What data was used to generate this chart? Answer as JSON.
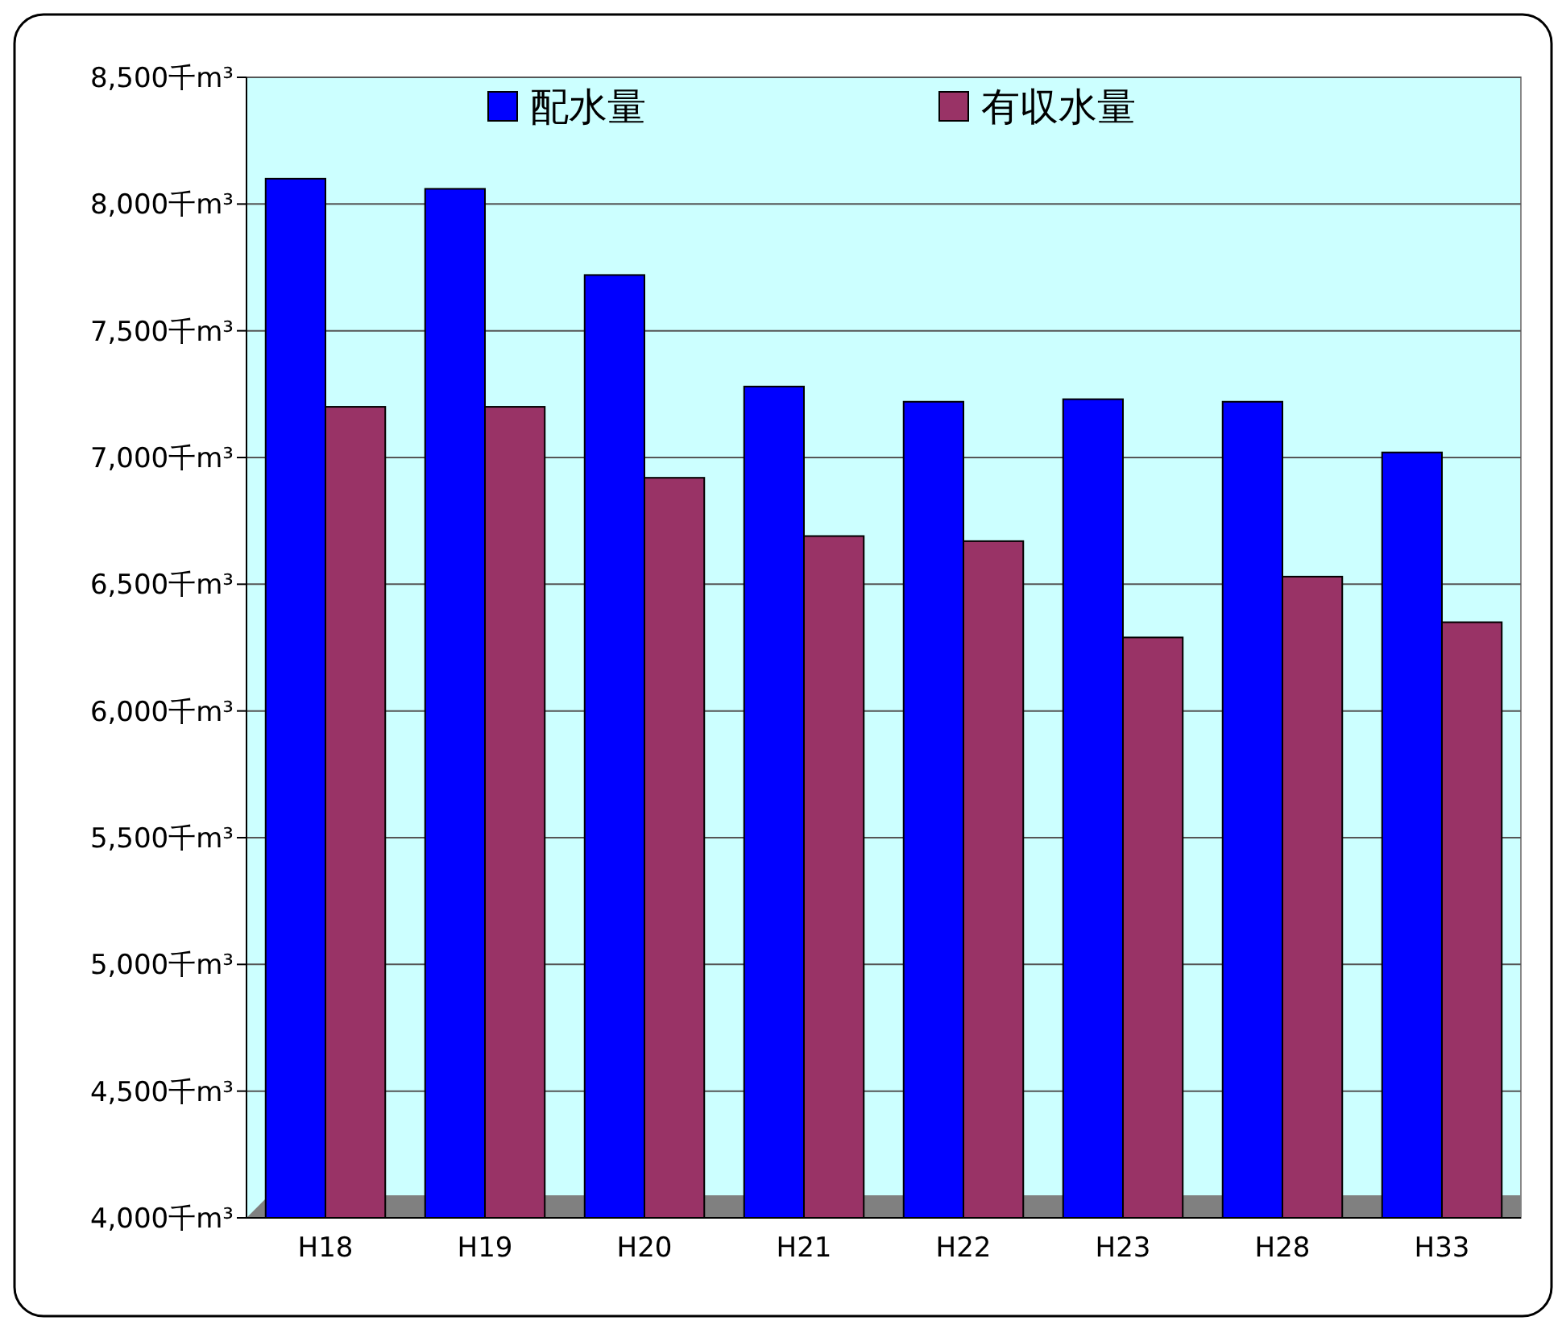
{
  "chart_data": {
    "type": "bar",
    "categories": [
      "H18",
      "H19",
      "H20",
      "H21",
      "H22",
      "H23",
      "H28",
      "H33"
    ],
    "series": [
      {
        "name": "配水量",
        "color": "#0000ff",
        "values": [
          8100,
          8060,
          7720,
          7280,
          7220,
          7230,
          7220,
          7020
        ]
      },
      {
        "name": "有収水量",
        "color": "#993366",
        "values": [
          7200,
          7200,
          6920,
          6690,
          6670,
          6290,
          6530,
          6350
        ]
      }
    ],
    "ylim": [
      4000,
      8500
    ],
    "yticks": [
      {
        "value": 4000,
        "label": "4,000千m³"
      },
      {
        "value": 4500,
        "label": "4,500千m³"
      },
      {
        "value": 5000,
        "label": "5,000千m³"
      },
      {
        "value": 5500,
        "label": "5,500千m³"
      },
      {
        "value": 6000,
        "label": "6,000千m³"
      },
      {
        "value": 6500,
        "label": "6,500千m³"
      },
      {
        "value": 7000,
        "label": "7,000千m³"
      },
      {
        "value": 7500,
        "label": "7,500千m³"
      },
      {
        "value": 8000,
        "label": "8,000千m³"
      },
      {
        "value": 8500,
        "label": "8,500千m³"
      }
    ],
    "grid": "y",
    "legend": "top"
  }
}
